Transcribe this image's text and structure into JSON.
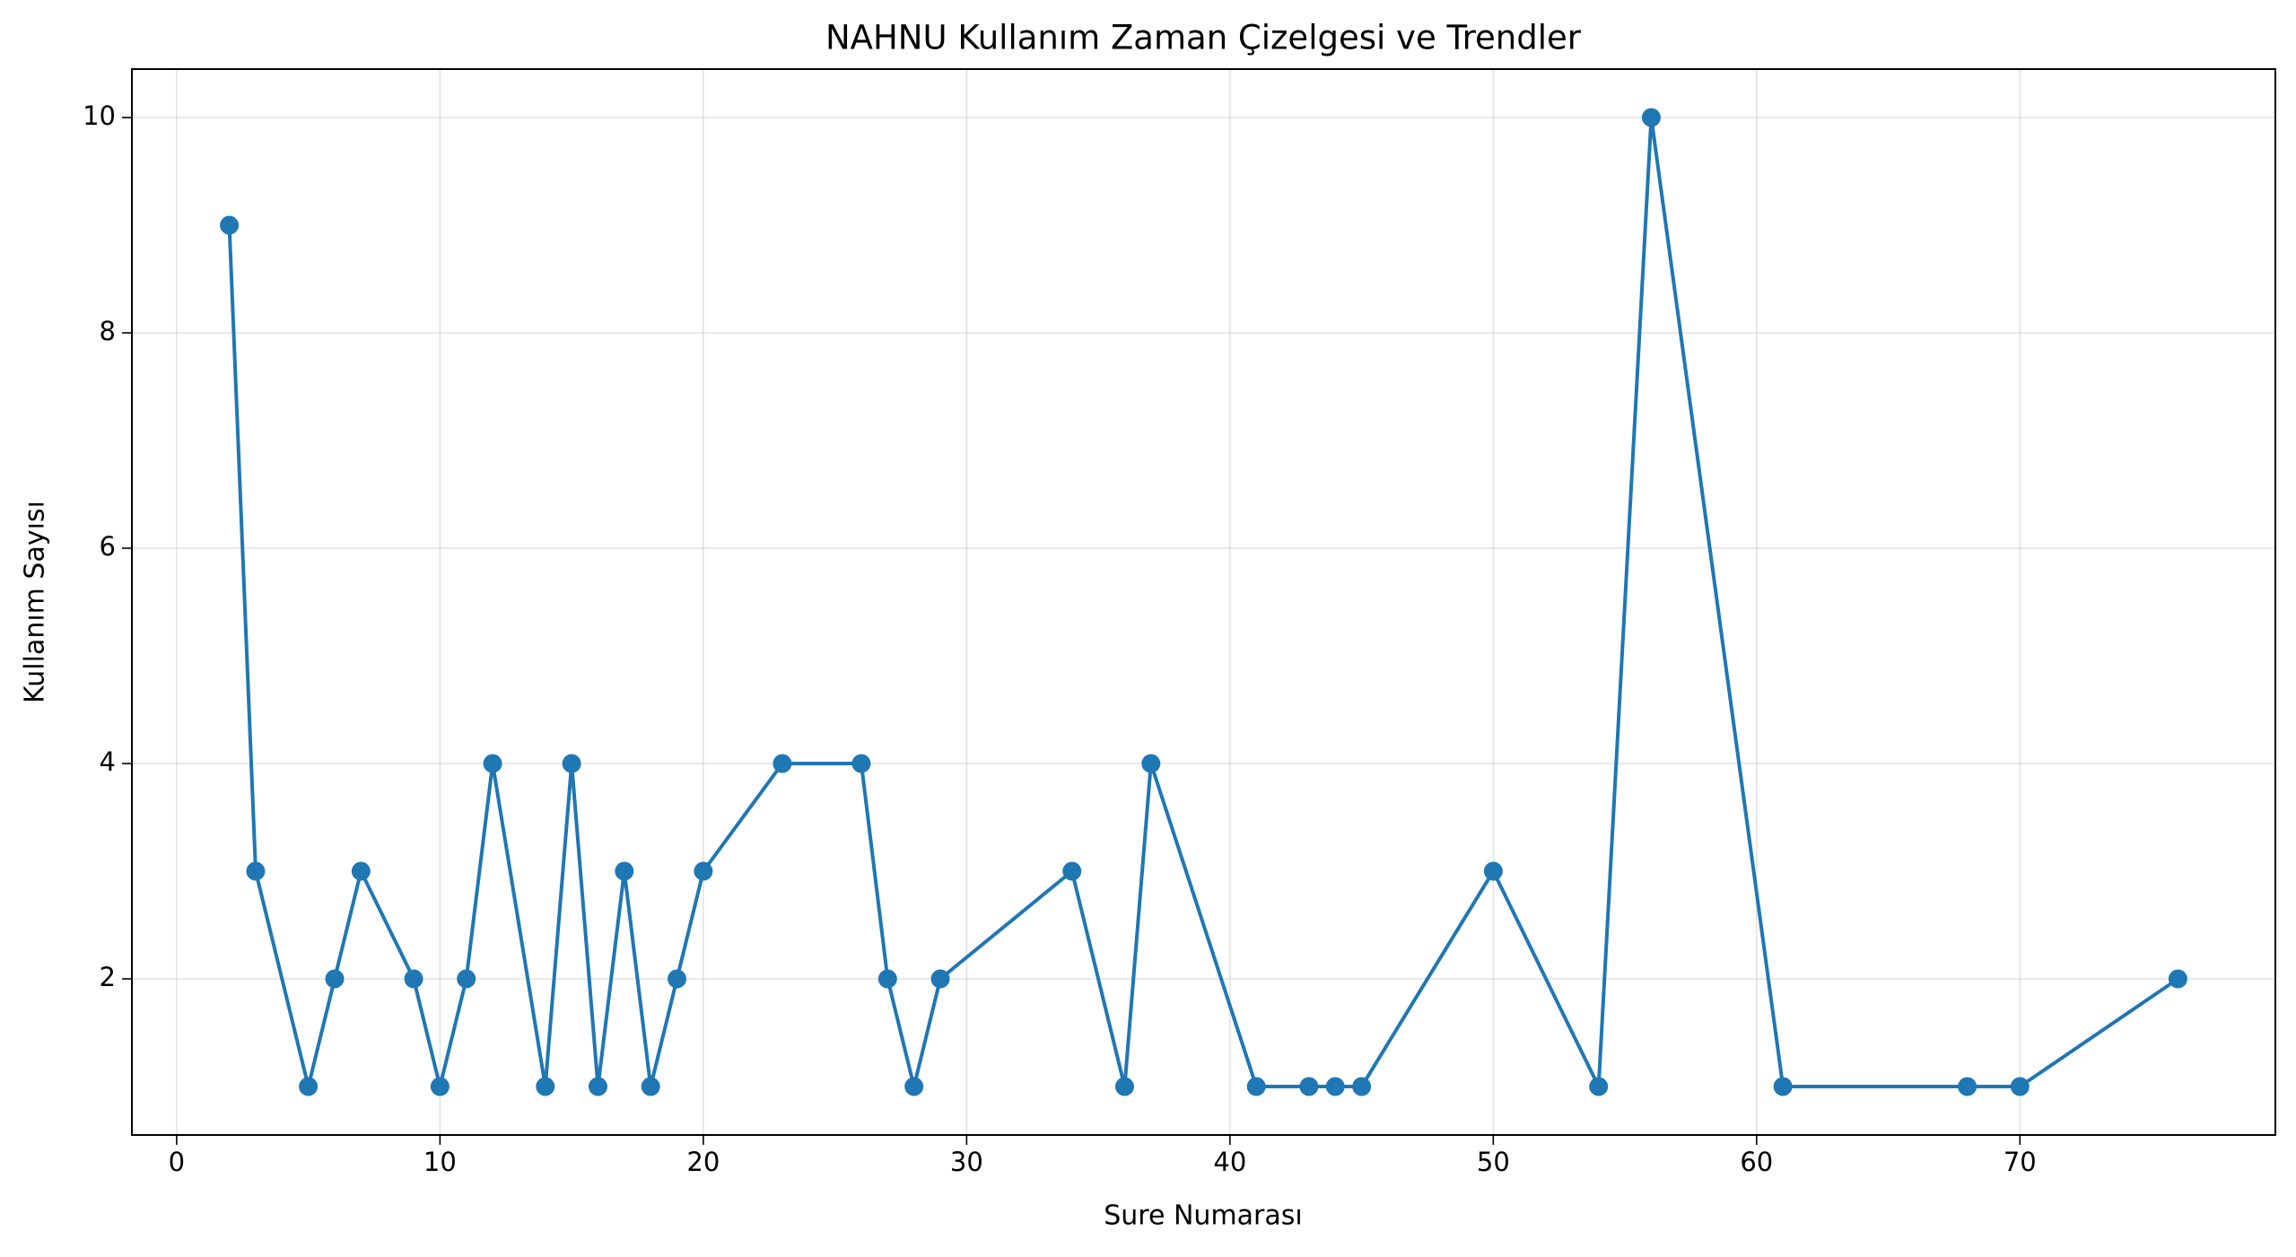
{
  "chart_data": {
    "type": "line",
    "title": "NAHNU Kullanım Zaman Çizelgesi ve Trendler",
    "xlabel": "Sure Numarası",
    "ylabel": "Kullanım Sayısı",
    "x": [
      2,
      3,
      5,
      6,
      7,
      9,
      10,
      11,
      12,
      14,
      15,
      16,
      17,
      18,
      19,
      20,
      23,
      26,
      27,
      28,
      29,
      34,
      36,
      37,
      41,
      43,
      44,
      45,
      50,
      54,
      56,
      61,
      68,
      70,
      76
    ],
    "series": [
      {
        "color": "#1f77b4",
        "values": [
          9,
          3,
          1,
          2,
          3,
          2,
          1,
          2,
          4,
          1,
          4,
          1,
          3,
          1,
          2,
          3,
          4,
          4,
          2,
          1,
          2,
          3,
          1,
          4,
          1,
          1,
          1,
          1,
          3,
          1,
          10,
          1,
          1,
          1,
          2
        ]
      }
    ],
    "xlim": [
      -1.7,
      79.7
    ],
    "ylim": [
      0.55,
      10.45
    ],
    "xticks": [
      0,
      10,
      20,
      30,
      40,
      50,
      60,
      70
    ],
    "yticks": [
      2,
      4,
      6,
      8,
      10
    ],
    "grid": true
  }
}
